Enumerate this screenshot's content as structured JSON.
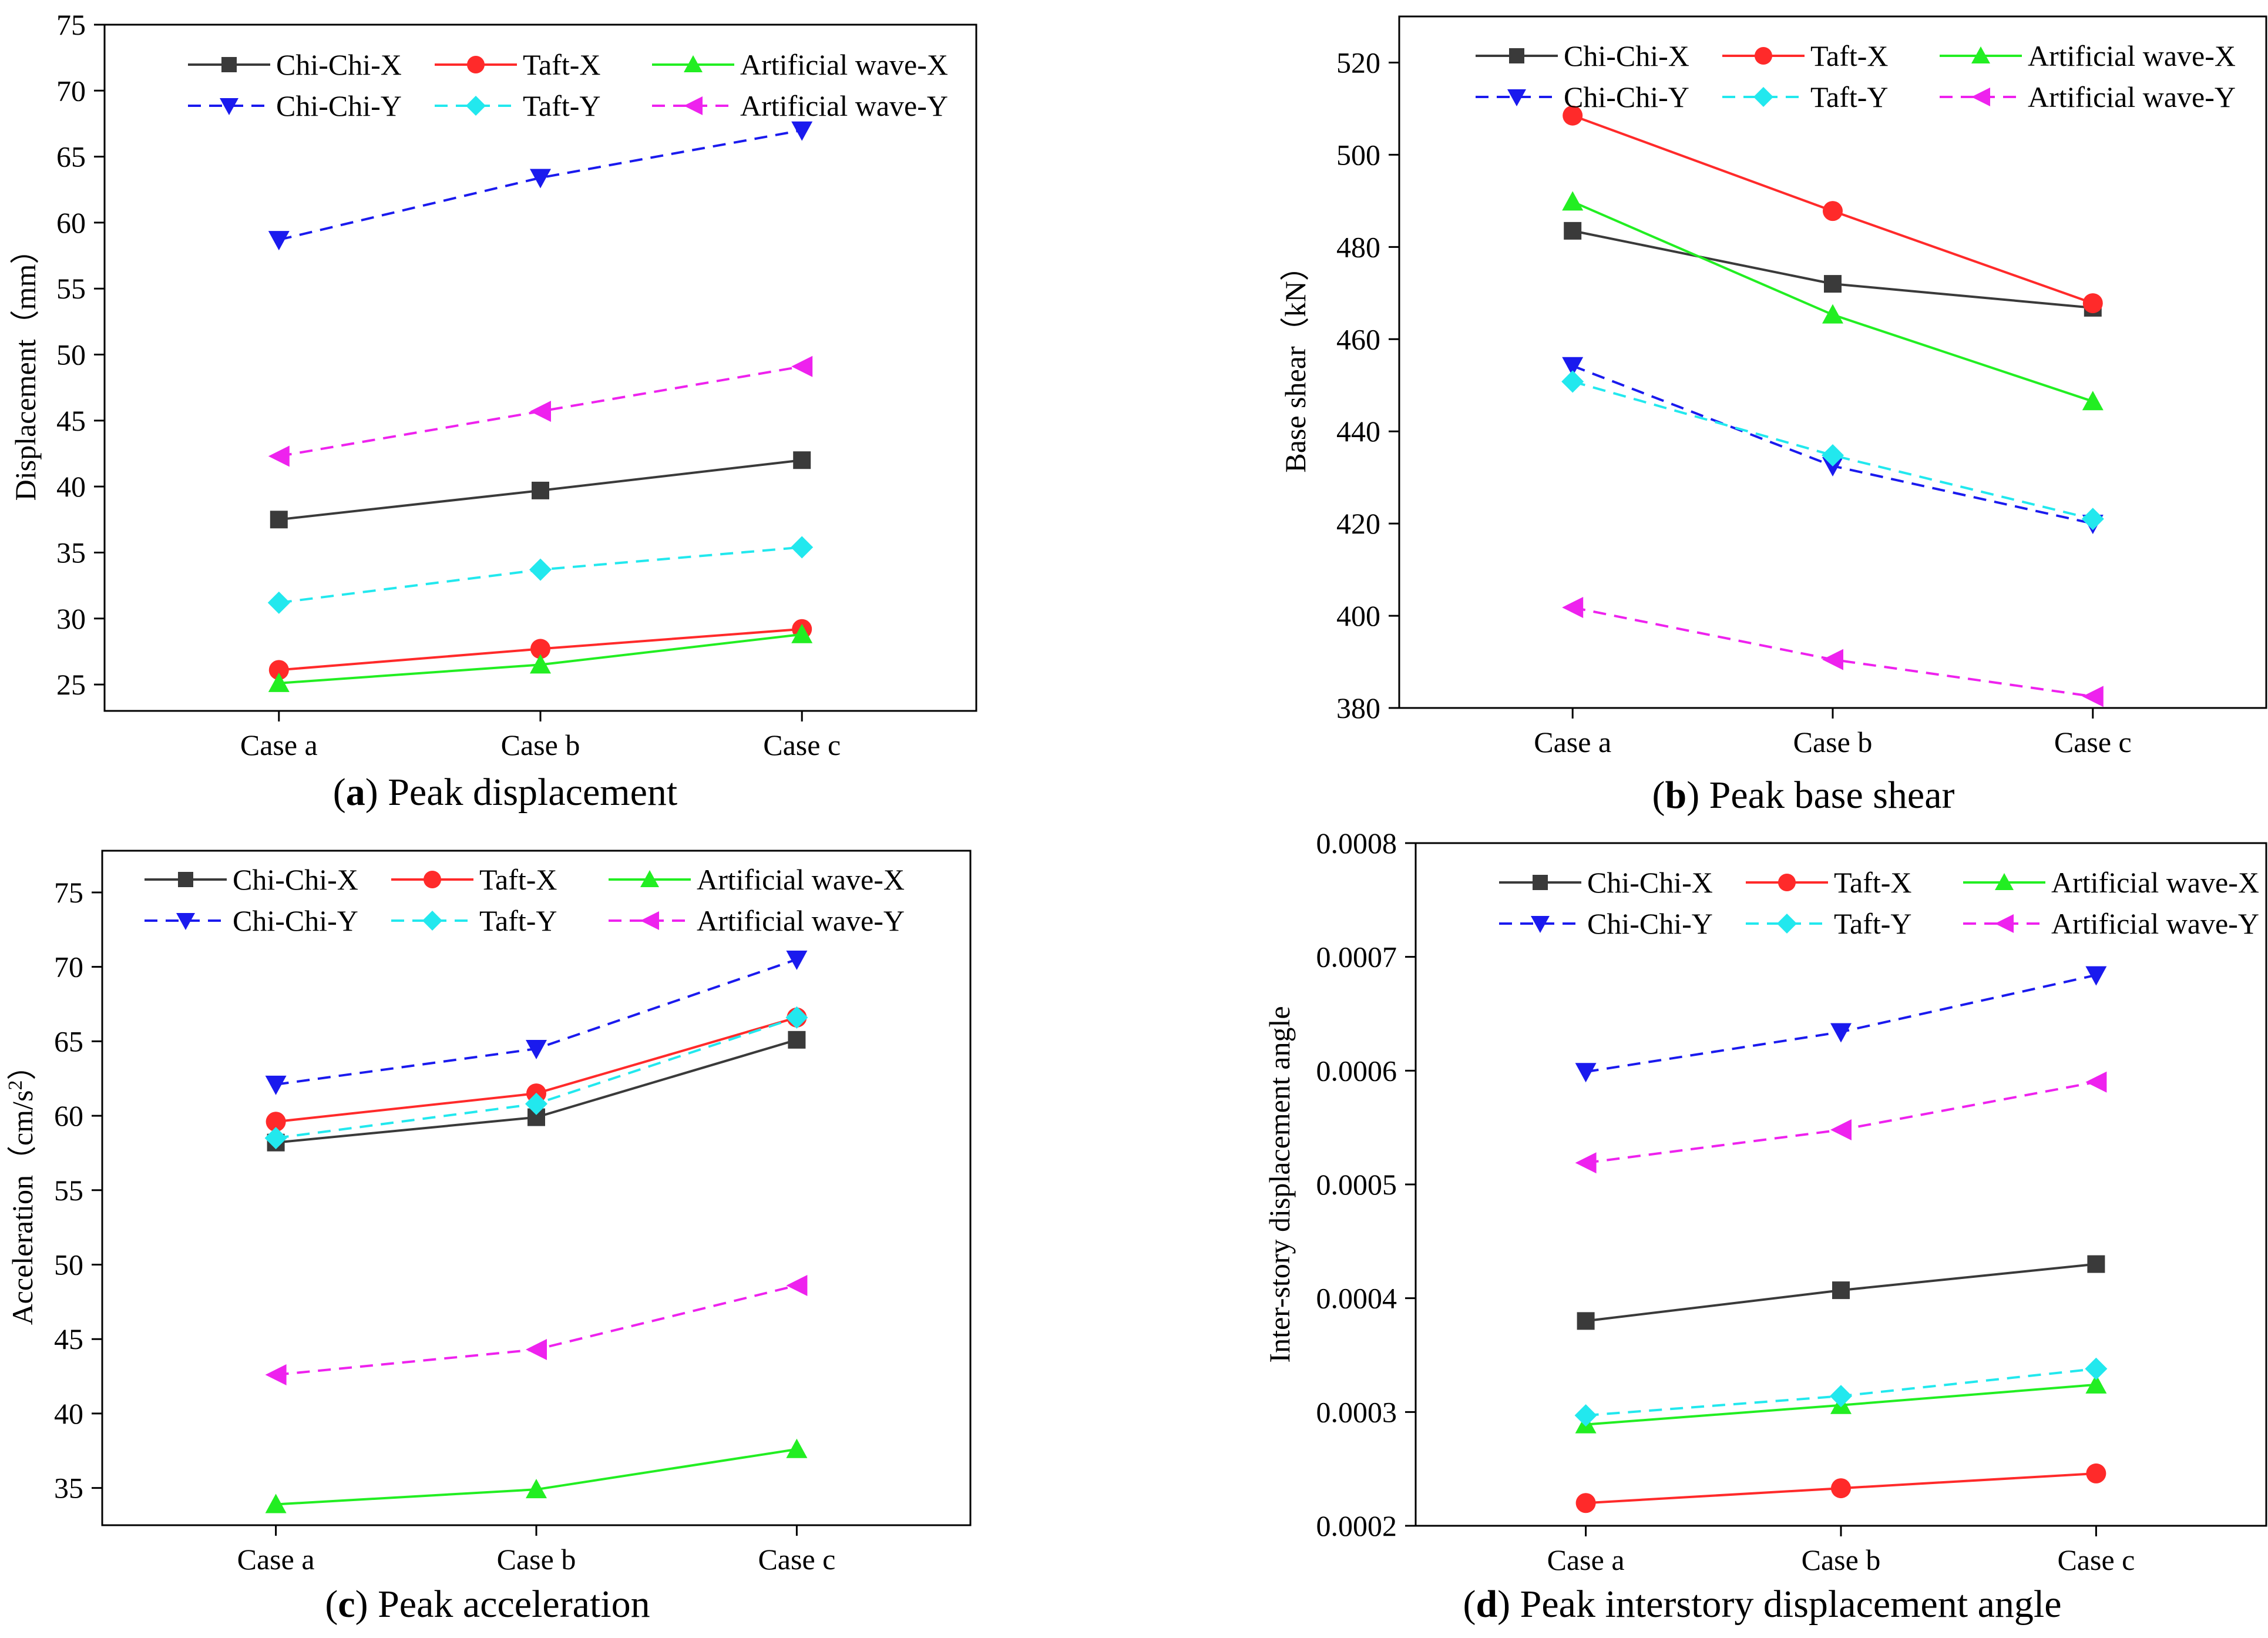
{
  "series_styles": [
    {
      "name": "Chi-Chi-X",
      "color": "#3a3a3a",
      "marker": "square",
      "dash": false
    },
    {
      "name": "Taft-X",
      "color": "#ff2a2a",
      "marker": "circle",
      "dash": false
    },
    {
      "name": "Artificial wave-X",
      "color": "#22ee22",
      "marker": "triangle-up",
      "dash": false
    },
    {
      "name": "Chi-Chi-Y",
      "color": "#1a1aee",
      "marker": "triangle-down",
      "dash": true
    },
    {
      "name": "Taft-Y",
      "color": "#22e8ee",
      "marker": "diamond",
      "dash": true
    },
    {
      "name": "Artificial wave-Y",
      "color": "#ee22ee",
      "marker": "triangle-left",
      "dash": true
    }
  ],
  "chart_data": [
    {
      "type": "line",
      "caption_letter": "a",
      "caption_text": " Peak displacement",
      "ylabel": "Displacement（mm）",
      "categories": [
        "Case a",
        "Case b",
        "Case c"
      ],
      "ylim": [
        23,
        75
      ],
      "yticks": [
        25,
        30,
        35,
        40,
        45,
        50,
        55,
        60,
        65,
        70,
        75
      ],
      "ytick_labels": [
        "25",
        "30",
        "35",
        "40",
        "45",
        "50",
        "55",
        "60",
        "65",
        "70",
        "75"
      ],
      "series": [
        {
          "name": "Chi-Chi-X",
          "values": [
            37.5,
            39.7,
            42.0
          ]
        },
        {
          "name": "Taft-X",
          "values": [
            26.1,
            27.7,
            29.2
          ]
        },
        {
          "name": "Artificial wave-X",
          "values": [
            25.1,
            26.5,
            28.8
          ]
        },
        {
          "name": "Chi-Chi-Y",
          "values": [
            58.7,
            63.4,
            67.0
          ]
        },
        {
          "name": "Taft-Y",
          "values": [
            31.2,
            33.7,
            35.4
          ]
        },
        {
          "name": "Artificial wave-Y",
          "values": [
            42.3,
            45.7,
            49.1
          ]
        }
      ]
    },
    {
      "type": "line",
      "caption_letter": "b",
      "caption_text": " Peak base shear",
      "ylabel": "Base shear（kN）",
      "categories": [
        "Case a",
        "Case b",
        "Case c"
      ],
      "ylim": [
        380,
        530
      ],
      "yticks": [
        380,
        400,
        420,
        440,
        460,
        480,
        500,
        520
      ],
      "ytick_labels": [
        "380",
        "400",
        "420",
        "440",
        "460",
        "480",
        "500",
        "520"
      ],
      "series": [
        {
          "name": "Chi-Chi-X",
          "values": [
            483.5,
            472.0,
            466.8
          ]
        },
        {
          "name": "Taft-X",
          "values": [
            508.5,
            487.8,
            467.8
          ]
        },
        {
          "name": "Artificial wave-X",
          "values": [
            489.8,
            465.3,
            446.5
          ]
        },
        {
          "name": "Chi-Chi-Y",
          "values": [
            454.2,
            432.5,
            420.0
          ]
        },
        {
          "name": "Taft-Y",
          "values": [
            450.8,
            434.8,
            421.0
          ]
        },
        {
          "name": "Artificial wave-Y",
          "values": [
            401.8,
            390.5,
            382.5
          ]
        }
      ]
    },
    {
      "type": "line",
      "caption_letter": "c",
      "caption_text": " Peak acceleration",
      "ylabel_main": "Acceleration（cm/s",
      "ylabel_sup": "2",
      "ylabel_end": "）",
      "categories": [
        "Case a",
        "Case b",
        "Case c"
      ],
      "ylim": [
        32.5,
        77.8
      ],
      "yticks": [
        35,
        40,
        45,
        50,
        55,
        60,
        65,
        70,
        75
      ],
      "ytick_labels": [
        "35",
        "40",
        "45",
        "50",
        "55",
        "60",
        "65",
        "70",
        "75"
      ],
      "series": [
        {
          "name": "Chi-Chi-X",
          "values": [
            58.2,
            59.9,
            65.1
          ]
        },
        {
          "name": "Taft-X",
          "values": [
            59.6,
            61.5,
            66.6
          ]
        },
        {
          "name": "Artificial wave-X",
          "values": [
            33.9,
            34.9,
            37.6
          ]
        },
        {
          "name": "Chi-Chi-Y",
          "values": [
            62.1,
            64.5,
            70.5
          ]
        },
        {
          "name": "Taft-Y",
          "values": [
            58.5,
            60.8,
            66.6
          ]
        },
        {
          "name": "Artificial wave-Y",
          "values": [
            42.6,
            44.3,
            48.6
          ]
        }
      ]
    },
    {
      "type": "line",
      "caption_letter": "d",
      "caption_text": " Peak interstory displacement angle",
      "ylabel": "Inter-story displacement angle",
      "categories": [
        "Case a",
        "Case b",
        "Case c"
      ],
      "ylim": [
        0.0002,
        0.0008
      ],
      "yticks": [
        0.0002,
        0.0003,
        0.0004,
        0.0005,
        0.0006,
        0.0007,
        0.0008
      ],
      "ytick_labels": [
        "0.0002",
        "0.0003",
        "0.0004",
        "0.0005",
        "0.0006",
        "0.0007",
        "0.0008"
      ],
      "series": [
        {
          "name": "Chi-Chi-X",
          "values": [
            0.00038,
            0.000407,
            0.00043
          ]
        },
        {
          "name": "Taft-X",
          "values": [
            0.00022,
            0.000233,
            0.000246
          ]
        },
        {
          "name": "Artificial wave-X",
          "values": [
            0.000289,
            0.000306,
            0.000324
          ]
        },
        {
          "name": "Chi-Chi-Y",
          "values": [
            0.000599,
            0.000634,
            0.000684
          ]
        },
        {
          "name": "Taft-Y",
          "values": [
            0.000297,
            0.000314,
            0.000338
          ]
        },
        {
          "name": "Artificial wave-Y",
          "values": [
            0.000519,
            0.000548,
            0.00059
          ]
        }
      ]
    }
  ]
}
